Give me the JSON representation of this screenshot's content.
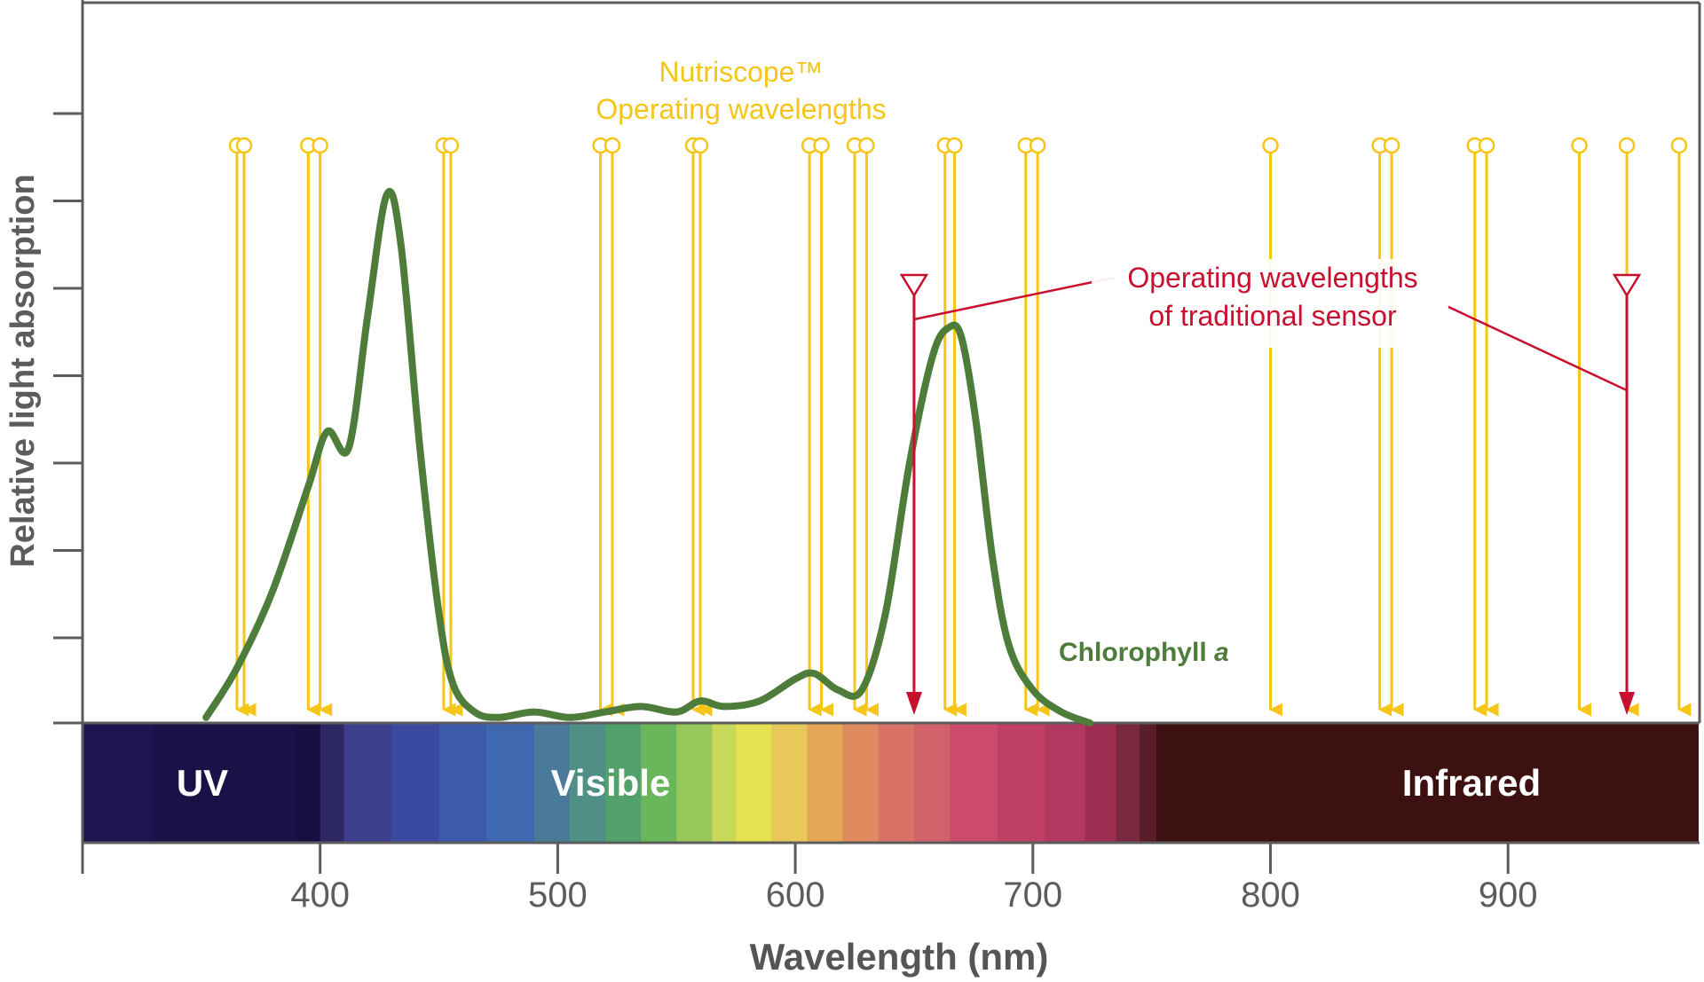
{
  "chart_data": {
    "type": "line",
    "title": "",
    "xlabel": "Wavelength (nm)",
    "ylabel": "Relative light absorption",
    "xlim": [
      300,
      980
    ],
    "ylim": [
      0,
      1
    ],
    "x_ticks": [
      400,
      500,
      600,
      700,
      800,
      900
    ],
    "x_tick_labels": [
      "400",
      "500",
      "600",
      "700",
      "800",
      "900"
    ],
    "y_tick_count": 7,
    "spectrum_bands": [
      {
        "name": "UV",
        "range": [
          300,
          400
        ]
      },
      {
        "name": "Visible",
        "range": [
          400,
          750
        ]
      },
      {
        "name": "Infrared",
        "range": [
          750,
          980
        ]
      }
    ],
    "series": [
      {
        "name": "Chlorophyll a",
        "color": "#4e7c3a",
        "x": [
          352,
          365,
          380,
          395,
          403,
          412,
          420,
          428,
          434,
          442,
          450,
          456,
          465,
          475,
          490,
          505,
          520,
          535,
          550,
          560,
          570,
          585,
          600,
          608,
          618,
          628,
          638,
          648,
          658,
          665,
          670,
          676,
          683,
          690,
          700,
          712,
          724
        ],
        "values": [
          0.01,
          0.1,
          0.24,
          0.43,
          0.53,
          0.5,
          0.74,
          0.96,
          0.87,
          0.5,
          0.2,
          0.07,
          0.02,
          0.01,
          0.02,
          0.01,
          0.02,
          0.03,
          0.02,
          0.04,
          0.03,
          0.04,
          0.08,
          0.09,
          0.06,
          0.06,
          0.2,
          0.47,
          0.67,
          0.72,
          0.7,
          0.55,
          0.3,
          0.14,
          0.06,
          0.02,
          0.0
        ]
      }
    ],
    "nutriscope_wavelengths": [
      365,
      368,
      395,
      400,
      452,
      455,
      518,
      523,
      557,
      560,
      606,
      611,
      625,
      630,
      663,
      667,
      697,
      702,
      800,
      846,
      851,
      886,
      891,
      930,
      950,
      972
    ],
    "traditional_sensor_wavelengths": [
      650,
      950
    ],
    "annotations": {
      "nutriscope": [
        "Nutriscope™",
        "Operating wavelengths"
      ],
      "traditional": [
        "Operating wavelengths",
        "of traditional sensor"
      ],
      "chlorophyll": "Chlorophyll a"
    },
    "colors": {
      "nutriscope": "#f5c518",
      "traditional": "#c8102e",
      "chlorophyll": "#4e7c3a",
      "axis": "#5c5c5c",
      "infrared": "#3d1012",
      "uv": "#1a1247"
    },
    "grid": false,
    "legend": "none"
  }
}
